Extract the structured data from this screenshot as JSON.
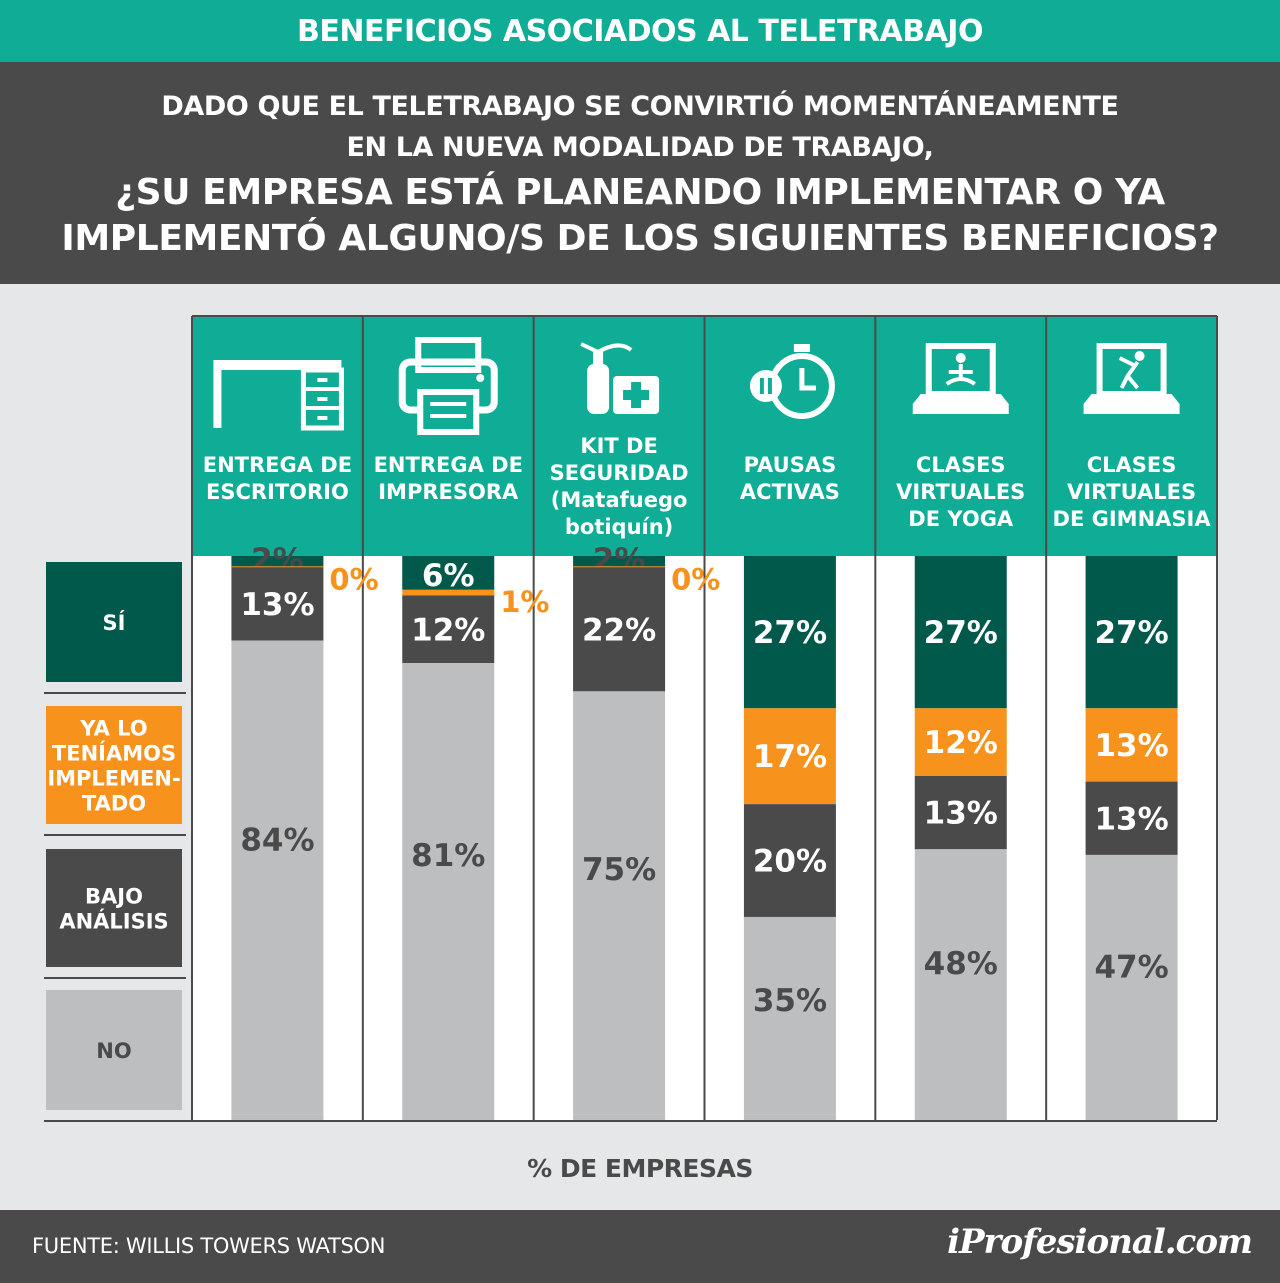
{
  "header": {
    "title": "BENEFICIOS ASOCIADOS AL TELETRABAJO",
    "question_line1": "DADO QUE EL TELETRABAJO SE CONVIRTIÓ MOMENTÁNEAMENTE",
    "question_line2": "EN LA NUEVA MODALIDAD DE TRABAJO,",
    "question_line3": "¿SU EMPRESA ESTÁ PLANEANDO IMPLEMENTAR O YA",
    "question_line4": "IMPLEMENTÓ ALGUNO/S DE LOS SIGUIENTES BENEFICIOS?"
  },
  "footer": {
    "source": "FUENTE: WILLIS TOWERS WATSON",
    "logo": "iProfesional.com"
  },
  "chart_data": {
    "type": "bar",
    "stacked": true,
    "xlabel": "% DE EMPRESAS",
    "categories": [
      {
        "lines": [
          "ENTREGA DE",
          "ESCRITORIO"
        ],
        "icon": "desk-icon"
      },
      {
        "lines": [
          "ENTREGA DE",
          "IMPRESORA"
        ],
        "icon": "printer-icon"
      },
      {
        "lines": [
          "KIT DE",
          "SEGURIDAD",
          "(Matafuego",
          "botiquín)"
        ],
        "icon": "fire-extinguisher-first-aid-icon"
      },
      {
        "lines": [
          "PAUSAS",
          "ACTIVAS"
        ],
        "icon": "stopwatch-icon"
      },
      {
        "lines": [
          "CLASES",
          "VIRTUALES",
          "DE YOGA"
        ],
        "icon": "laptop-yoga-icon"
      },
      {
        "lines": [
          "CLASES",
          "VIRTUALES",
          "DE GIMNASIA"
        ],
        "icon": "laptop-gym-icon"
      }
    ],
    "series": [
      {
        "name": "SÍ",
        "legend_lines": [
          "SÍ"
        ],
        "color": "#00594a",
        "values": [
          2,
          6,
          2,
          27,
          27,
          27
        ],
        "labels": [
          "2%",
          "6%",
          "2%",
          "27%",
          "27%",
          "27%"
        ]
      },
      {
        "name": "YA LO TENÍAMOS IMPLEMENTADO",
        "legend_lines": [
          "YA LO",
          "TENÍAMOS",
          "IMPLEMEN-",
          "TADO"
        ],
        "color": "#f7931d",
        "values": [
          0,
          1,
          0,
          17,
          12,
          13
        ],
        "labels": [
          "0%",
          "1%",
          "0%",
          "17%",
          "12%",
          "13%"
        ]
      },
      {
        "name": "BAJO ANÁLISIS",
        "legend_lines": [
          "BAJO",
          "ANÁLISIS"
        ],
        "color": "#4a4a4a",
        "values": [
          13,
          12,
          22,
          20,
          13,
          13
        ],
        "labels": [
          "13%",
          "12%",
          "22%",
          "20%",
          "13%",
          "13%"
        ]
      },
      {
        "name": "NO",
        "legend_lines": [
          "NO"
        ],
        "color": "#bcbec0",
        "values": [
          84,
          81,
          75,
          35,
          48,
          47
        ],
        "labels": [
          "84%",
          "81%",
          "75%",
          "35%",
          "48%",
          "47%"
        ]
      }
    ],
    "ylim": [
      0,
      100
    ],
    "colors": {
      "teal": "#10ad96",
      "dark": "#4a4a4a",
      "white_panel": "#ffffff"
    }
  }
}
